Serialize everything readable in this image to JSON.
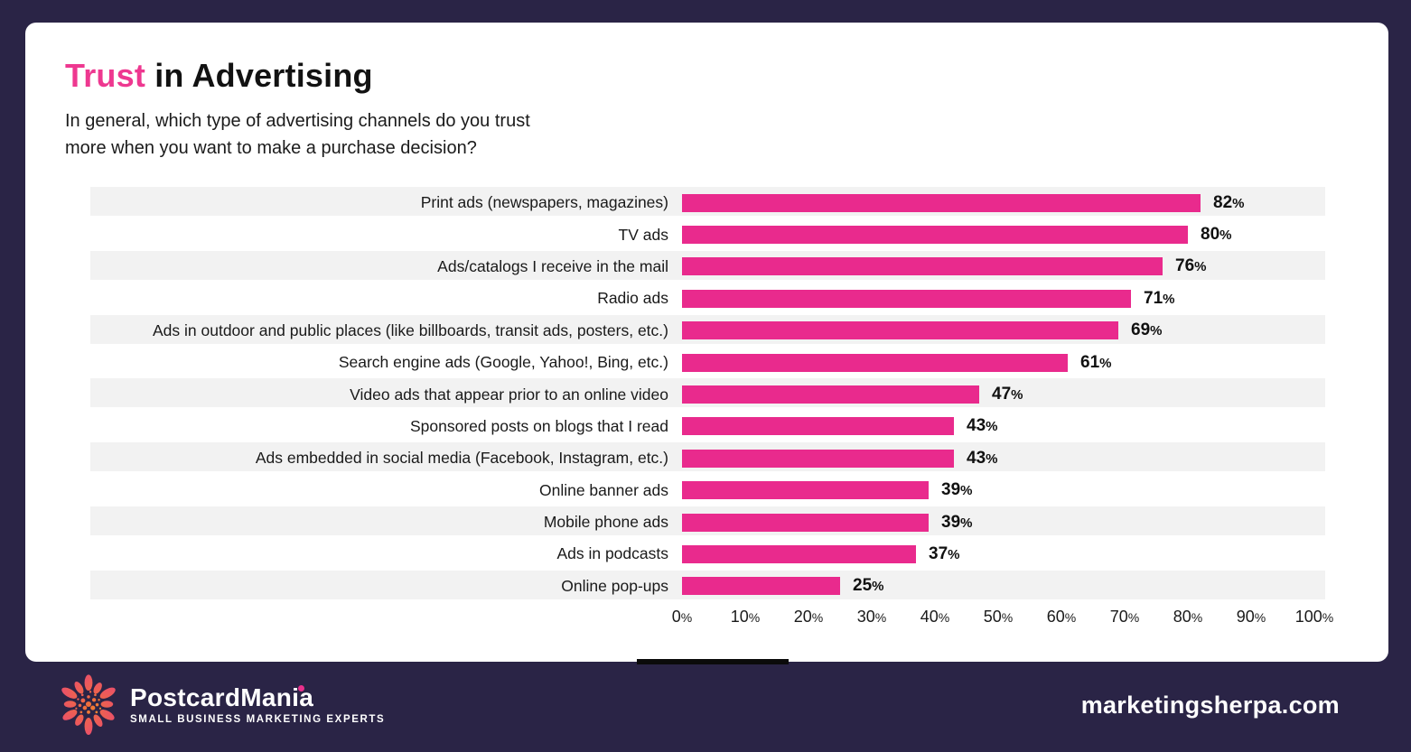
{
  "header": {
    "title_highlight": "Trust",
    "title_rest": " in Advertising",
    "subtitle_line1": "In general, which type of advertising channels do you trust",
    "subtitle_line2": "more when you want to make a purchase decision?"
  },
  "chart_data": {
    "type": "bar",
    "orientation": "horizontal",
    "title": "Trust in Advertising",
    "question": "In general, which type of advertising channels do you trust more when you want to make a purchase decision?",
    "categories": [
      "Print ads (newspapers, magazines)",
      "TV ads",
      "Ads/catalogs I receive in the mail",
      "Radio ads",
      "Ads in outdoor and public places (like billboards, transit ads, posters, etc.)",
      "Search engine ads (Google, Yahoo!, Bing, etc.)",
      "Video ads that appear prior to an online video",
      "Sponsored posts on blogs that I read",
      "Ads embedded in social media (Facebook, Instagram, etc.)",
      "Online banner ads",
      "Mobile phone ads",
      "Ads in podcasts",
      "Online pop-ups"
    ],
    "values": [
      82,
      80,
      76,
      71,
      69,
      61,
      47,
      43,
      43,
      39,
      39,
      37,
      25
    ],
    "value_suffix": "%",
    "x_ticks": [
      0,
      10,
      20,
      30,
      40,
      50,
      60,
      70,
      80,
      90,
      100
    ],
    "tick_suffix": "%",
    "xlim": [
      0,
      100
    ],
    "grid": false,
    "legend": false,
    "bar_color": "#e92a8d",
    "row_stripe_color": "#f2f2f2"
  },
  "footer": {
    "brand_name": "PostcardMania",
    "brand_tagline": "SMALL BUSINESS MARKETING EXPERTS",
    "source": "marketingsherpa.com"
  },
  "colors": {
    "background": "#2a2446",
    "card": "#ffffff",
    "accent_pink": "#ee3890",
    "bar_pink": "#e92a8d",
    "text_dark": "#151515",
    "footer_text": "#ffffff"
  }
}
